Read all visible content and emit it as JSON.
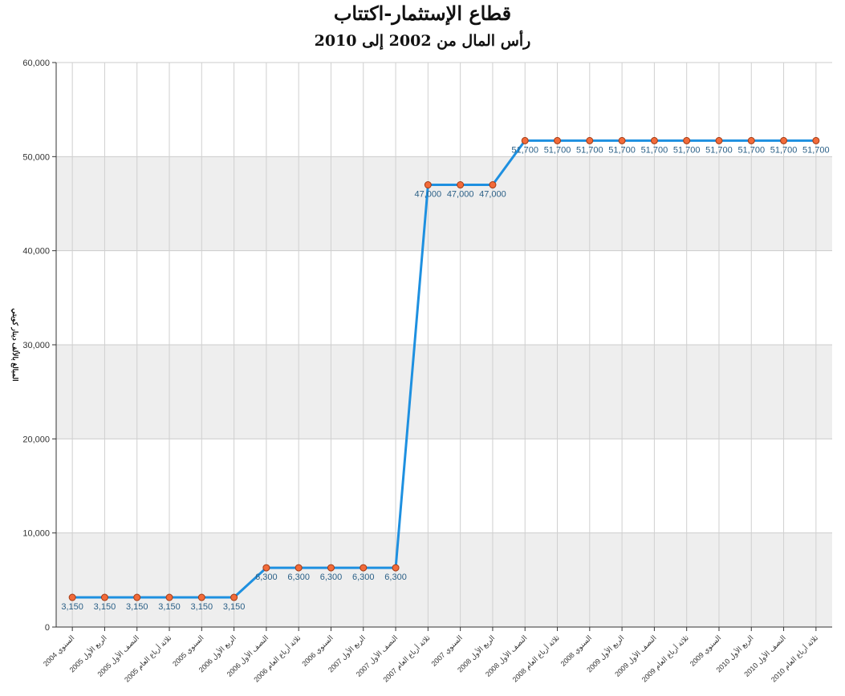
{
  "chart_data": {
    "type": "line",
    "title": "قطاع الإستثمار-اكتتاب",
    "subtitle": "رأس المال من 2002 إلى 2010",
    "ylabel": "المبالغ بالألف دينار كويتي",
    "xlabel": "",
    "ylim": [
      0,
      60000
    ],
    "yticks": [
      "0",
      "10,000",
      "20,000",
      "30,000",
      "40,000",
      "50,000",
      "60,000"
    ],
    "grid": true,
    "legend": "none",
    "line_color": "#1e90e0",
    "marker_color": "#f26b3a",
    "band_color": "#eeeeee",
    "categories": [
      "السنوي 2004",
      "الربع الأول 2005",
      "النصف الأول 2005",
      "ثلاثة أرباع العام 2005",
      "السنوي 2005",
      "الربع الأول 2006",
      "النصف الأول 2006",
      "ثلاثة أرباع العام 2006",
      "السنوي 2006",
      "الربع الأول 2007",
      "النصف الأول 2007",
      "ثلاثة أرباع العام 2007",
      "السنوي 2007",
      "الربع الأول 2008",
      "النصف الأول 2008",
      "ثلاثة أرباع العام 2008",
      "السنوي 2008",
      "الربع الأول 2009",
      "النصف الأول 2009",
      "ثلاثة أرباع العام 2009",
      "السنوي 2009",
      "الربع الأول 2010",
      "النصف الأول 2010",
      "ثلاثة أرباع العام 2010"
    ],
    "values": [
      3150,
      3150,
      3150,
      3150,
      3150,
      3150,
      6300,
      6300,
      6300,
      6300,
      6300,
      47000,
      47000,
      47000,
      51700,
      51700,
      51700,
      51700,
      51700,
      51700,
      51700,
      51700,
      51700,
      51700
    ],
    "value_labels": [
      "3,150",
      "3,150",
      "3,150",
      "3,150",
      "3,150",
      "3,150",
      "6,300",
      "6,300",
      "6,300",
      "6,300",
      "6,300",
      "47,000",
      "47,000",
      "47,000",
      "51,700",
      "51,700",
      "51,700",
      "51,700",
      "51,700",
      "51,700",
      "51,700",
      "51,700",
      "51,700",
      "51,700"
    ]
  }
}
